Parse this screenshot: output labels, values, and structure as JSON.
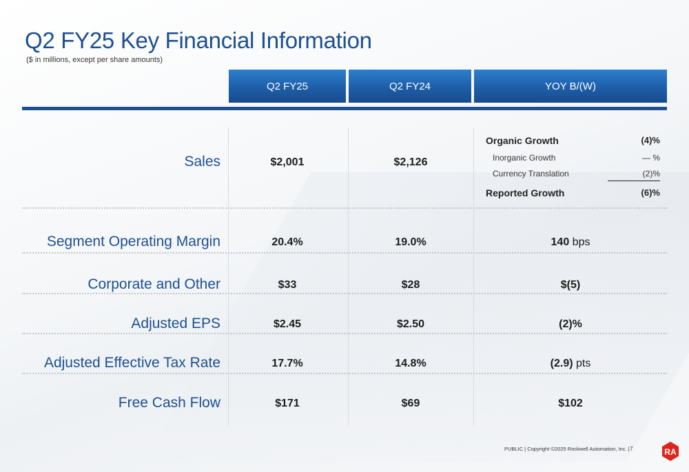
{
  "title": "Q2 FY25 Key Financial Information",
  "subtitle": "($ in millions, except per share amounts)",
  "columns": [
    "Q2 FY25",
    "Q2 FY24",
    "YOY B/(W)"
  ],
  "sales": {
    "label": "Sales",
    "q2fy25": "$2,001",
    "q2fy24": "$2,126",
    "yoy": [
      {
        "label": "Organic Growth",
        "value": "(4)%"
      },
      {
        "label": "Inorganic Growth",
        "value": "— %"
      },
      {
        "label": "Currency Translation",
        "value": "(2)%"
      },
      {
        "label": "Reported Growth",
        "value": "(6)%"
      }
    ]
  },
  "rows": [
    {
      "label": "Segment Operating Margin",
      "q2fy25": "20.4%",
      "q2fy24": "19.0%",
      "yoy": "140",
      "yoy_unit": " bps"
    },
    {
      "label": "Corporate and Other",
      "q2fy25": "$33",
      "q2fy24": "$28",
      "yoy": "$(5)",
      "yoy_unit": ""
    },
    {
      "label": "Adjusted EPS",
      "q2fy25": "$2.45",
      "q2fy24": "$2.50",
      "yoy": "(2)%",
      "yoy_unit": ""
    },
    {
      "label": "Adjusted Effective Tax Rate",
      "q2fy25": "17.7%",
      "q2fy24": "14.8%",
      "yoy": "(2.9)",
      "yoy_unit": " pts"
    },
    {
      "label": "Free Cash Flow",
      "q2fy25": "$171",
      "q2fy24": "$69",
      "yoy": "$102",
      "yoy_unit": ""
    }
  ],
  "footer": {
    "text": "PUBLIC | Copyright ©2025 Rockwell Automation, Inc. |",
    "page": "7"
  },
  "logo": {
    "text": "RA",
    "color": "#e0241b"
  },
  "colors": {
    "brand_blue": "#1d4f91",
    "header_gradient_top": "#2d7fce",
    "header_gradient_bottom": "#174a8c"
  }
}
